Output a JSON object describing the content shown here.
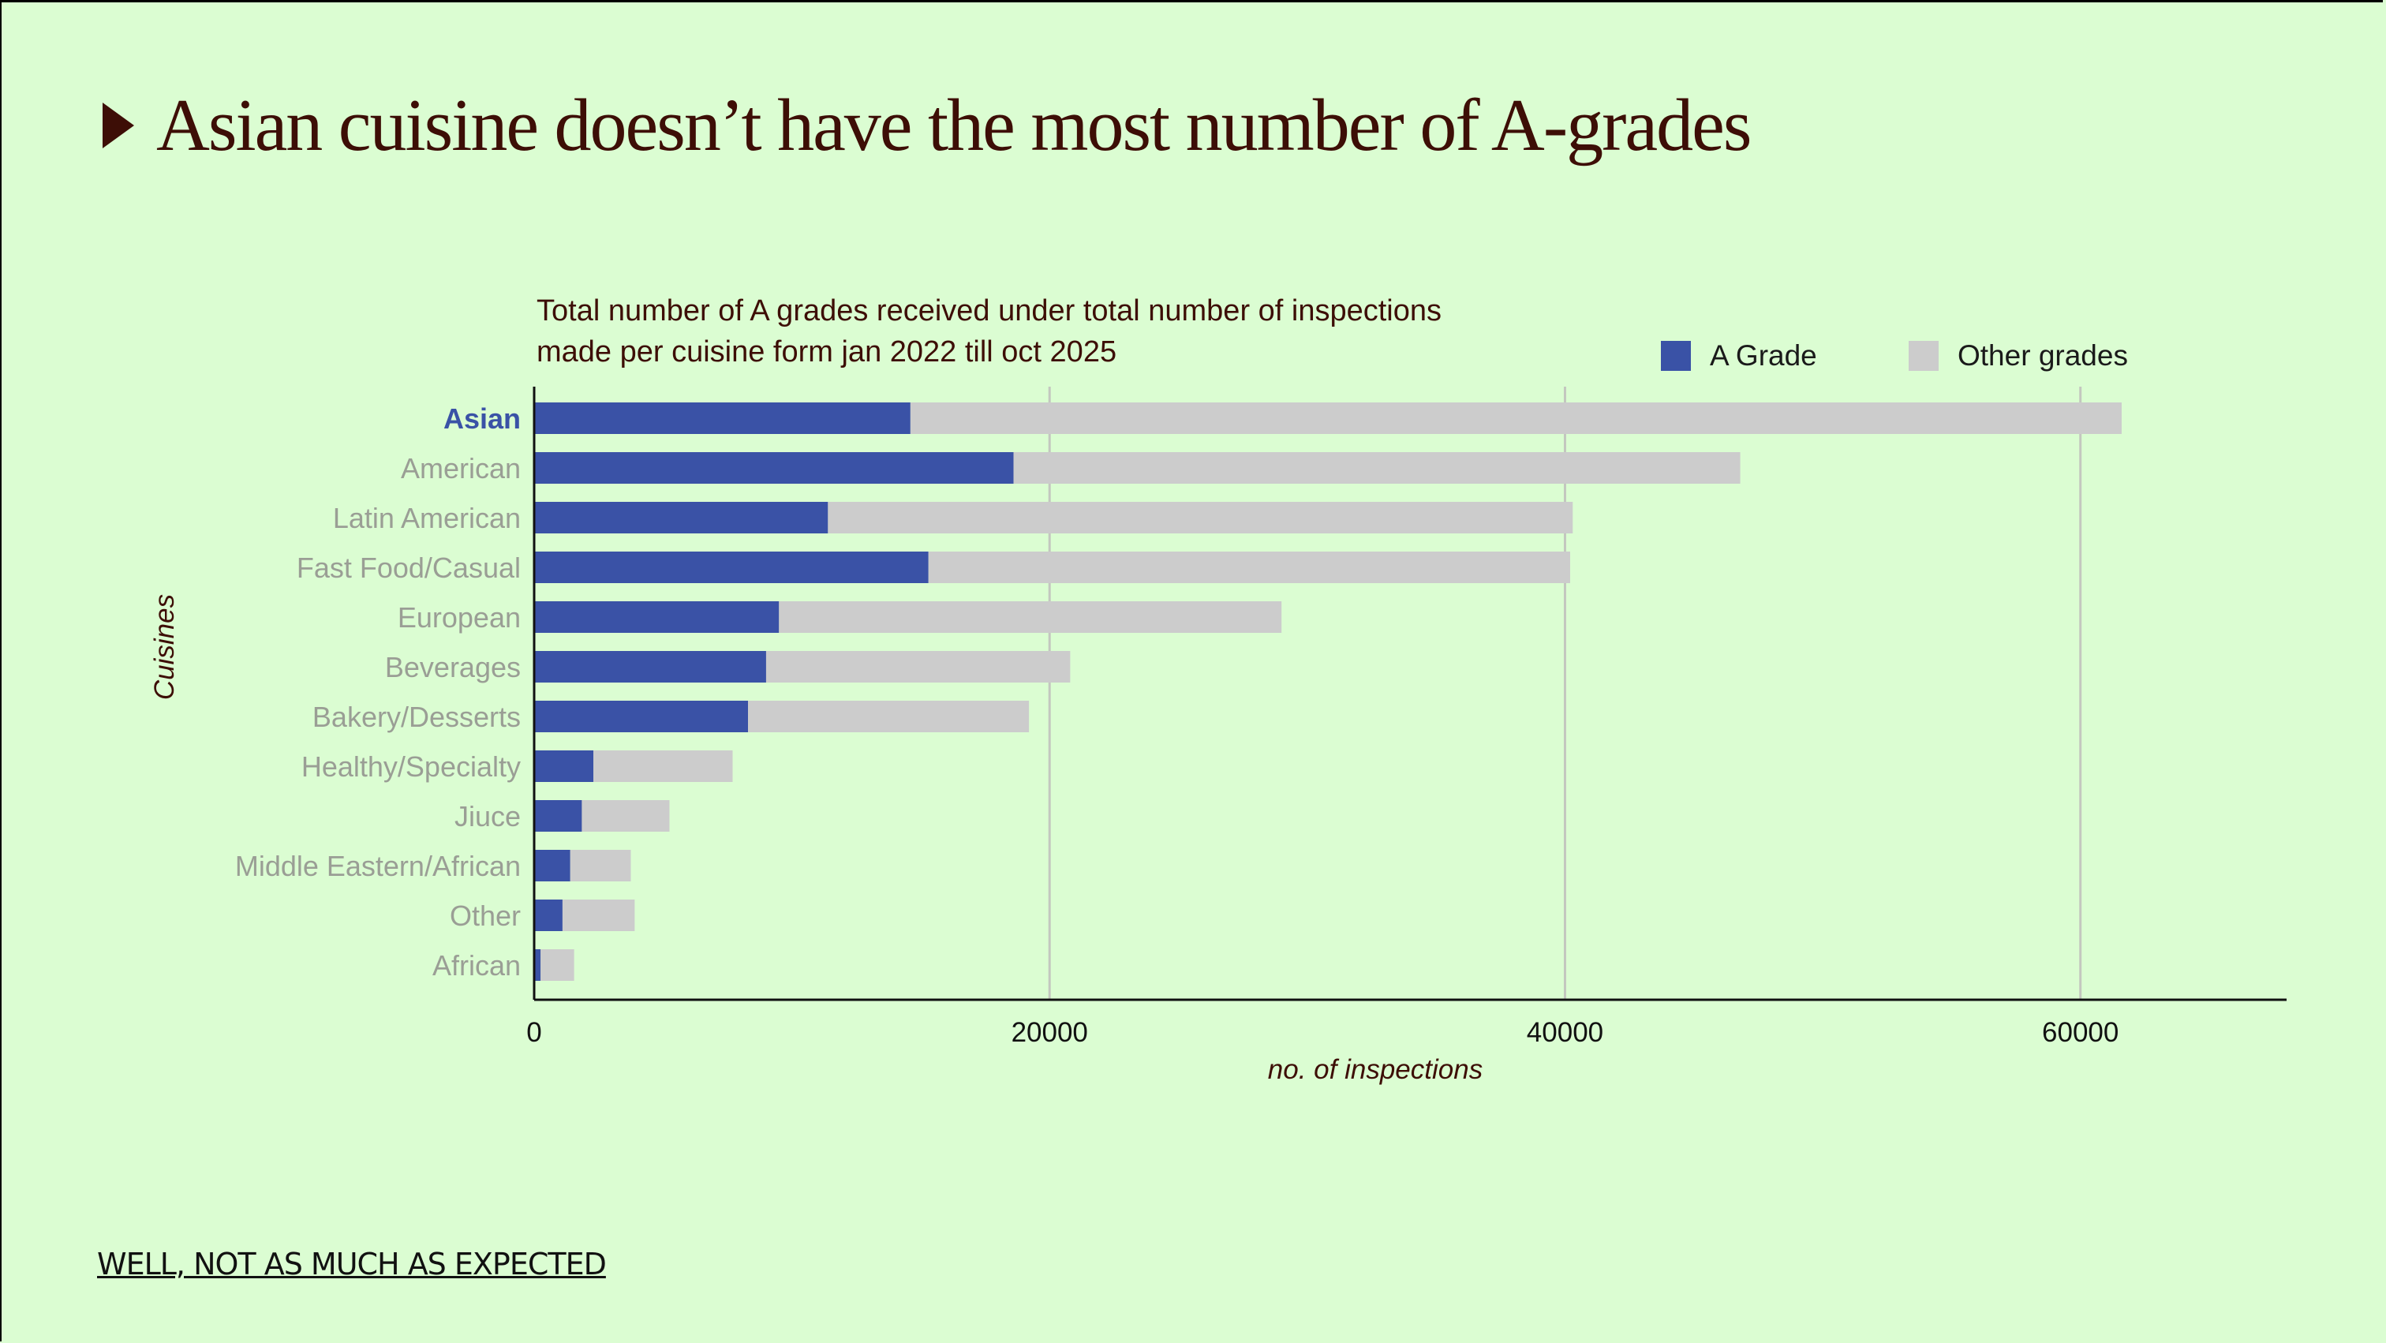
{
  "header": {
    "title": "Asian cuisine doesn’t have the most number of A-grades"
  },
  "footer": {
    "text": "WELL, NOT AS MUCH AS EXPECTED"
  },
  "chart_data": {
    "type": "bar",
    "orientation": "horizontal",
    "stacked": true,
    "subtitle_lines": [
      "Total number of A grades received under total number of inspections",
      "made per cuisine form jan 2022 till oct 2025"
    ],
    "xlabel": "no. of inspections",
    "ylabel": "Cuisines",
    "xlim": [
      0,
      68000
    ],
    "xticks": [
      0,
      20000,
      40000,
      60000
    ],
    "grid": "vertical",
    "legend_position": "top-right",
    "highlight_category": "Asian",
    "categories": [
      "Asian",
      "American",
      "Latin American",
      "Fast Food/Casual",
      "European",
      "Beverages",
      "Bakery/Desserts",
      "Healthy/Specialty",
      "Jiuce",
      "Middle Eastern/African",
      "Other",
      "African"
    ],
    "series": [
      {
        "name": "A Grade",
        "color": "#3a52a6",
        "values": [
          14600,
          18600,
          11400,
          15300,
          9500,
          9000,
          8300,
          2300,
          1850,
          1400,
          1100,
          250
        ]
      },
      {
        "name": "Other grades",
        "color": "#cccccc",
        "values": [
          47000,
          28200,
          28900,
          24900,
          19500,
          11800,
          10900,
          5400,
          3400,
          2350,
          2800,
          1300
        ]
      }
    ]
  }
}
